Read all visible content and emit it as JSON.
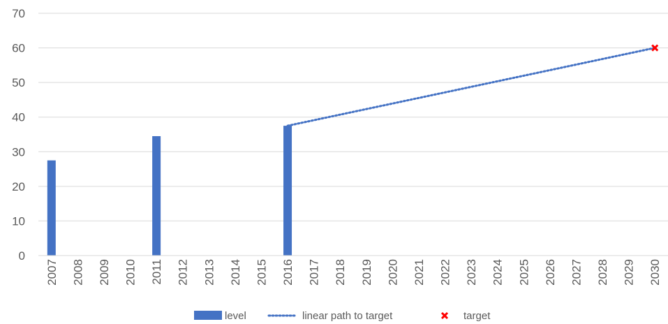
{
  "chart_data": {
    "type": "bar",
    "title": "",
    "xlabel": "",
    "ylabel": "",
    "ylim": [
      0,
      70
    ],
    "yticks": [
      0,
      10,
      20,
      30,
      40,
      50,
      60,
      70
    ],
    "grid": true,
    "legend_position": "bottom",
    "categories": [
      "2007",
      "2008",
      "2009",
      "2010",
      "2011",
      "2012",
      "2013",
      "2014",
      "2015",
      "2016",
      "2017",
      "2018",
      "2019",
      "2020",
      "2021",
      "2022",
      "2023",
      "2024",
      "2025",
      "2026",
      "2027",
      "2028",
      "2029",
      "2030"
    ],
    "series": [
      {
        "name": "level",
        "type": "bar",
        "color": "#4472C4",
        "points": [
          {
            "x": "2007",
            "y": 27.5
          },
          {
            "x": "2011",
            "y": 34.5
          },
          {
            "x": "2016",
            "y": 37.5
          }
        ]
      },
      {
        "name": "linear path to target",
        "type": "line",
        "style": "dotted",
        "color": "#4472C4",
        "points": [
          {
            "x": "2016",
            "y": 37.5
          },
          {
            "x": "2030",
            "y": 60
          }
        ]
      },
      {
        "name": "target",
        "type": "scatter",
        "marker": "x",
        "color": "#FF0000",
        "points": [
          {
            "x": "2030",
            "y": 60
          }
        ]
      }
    ]
  }
}
